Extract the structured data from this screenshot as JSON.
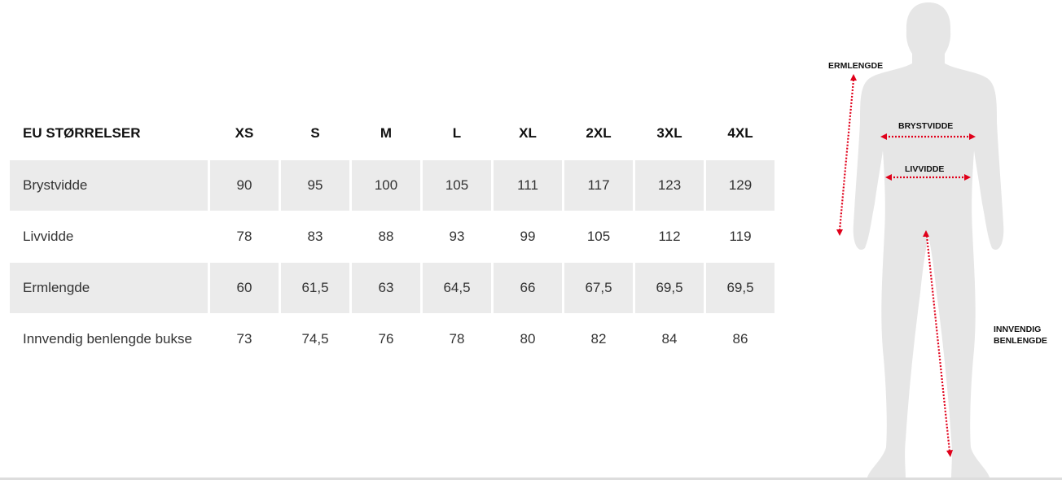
{
  "table": {
    "header_label": "EU STØRRELSER",
    "sizes": [
      "XS",
      "S",
      "M",
      "L",
      "XL",
      "2XL",
      "3XL",
      "4XL"
    ],
    "rows": [
      {
        "label": "Brystvidde",
        "values": [
          "90",
          "95",
          "100",
          "105",
          "111",
          "117",
          "123",
          "129"
        ]
      },
      {
        "label": "Livvidde",
        "values": [
          "78",
          "83",
          "88",
          "93",
          "99",
          "105",
          "112",
          "119"
        ]
      },
      {
        "label": "Ermlengde",
        "values": [
          "60",
          "61,5",
          "63",
          "64,5",
          "66",
          "67,5",
          "69,5",
          "69,5"
        ]
      },
      {
        "label": "Innvendig benlengde bukse",
        "values": [
          "73",
          "74,5",
          "76",
          "78",
          "80",
          "82",
          "84",
          "86"
        ]
      }
    ]
  },
  "figure": {
    "labels": {
      "sleeve": "ERMLENGDE",
      "chest": "BRYSTVIDDE",
      "waist": "LIVVIDDE",
      "inseam_line1": "INNVENDIG",
      "inseam_line2": "BENLENGDE"
    },
    "silhouette_color": "#e6e6e6",
    "arrow_color": "#e0001a"
  }
}
